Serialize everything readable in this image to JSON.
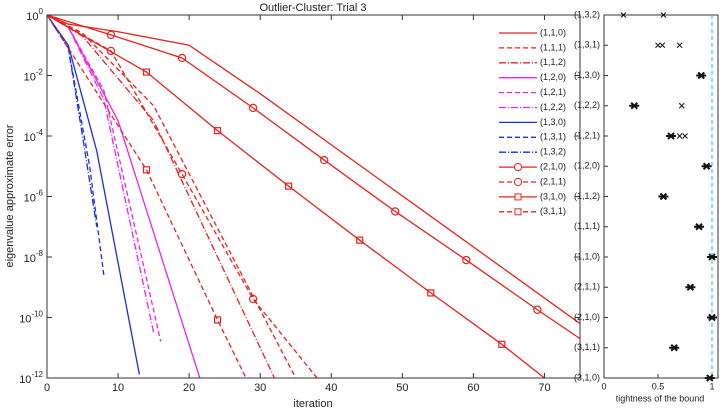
{
  "chart_data": [
    {
      "type": "line",
      "title": "Outlier-Cluster: Trial 3",
      "xlabel": "iteration",
      "ylabel": "eigenvalue approximate error",
      "log_y": true,
      "xlim": [
        0,
        75
      ],
      "ylim": [
        1e-12,
        1
      ],
      "xticks": [
        0,
        10,
        20,
        30,
        40,
        50,
        60,
        70
      ],
      "yticks": [
        {
          "value": 1e-12,
          "label": "10^-12"
        },
        {
          "value": 1e-10,
          "label": "10^-10"
        },
        {
          "value": 1e-08,
          "label": "10^-8"
        },
        {
          "value": 1e-06,
          "label": "10^-6"
        },
        {
          "value": 0.0001,
          "label": "10^-4"
        },
        {
          "value": 0.01,
          "label": "10^-2"
        },
        {
          "value": 1,
          "label": "10^0"
        }
      ],
      "legend": "upper right",
      "series": [
        {
          "name": "(1,1,0)",
          "color": "#e8231f",
          "style": "solid",
          "x": [
            0,
            3,
            10,
            20,
            30,
            75
          ],
          "values": [
            1,
            0.5,
            0.28,
            0.1,
            0.0025,
            6.3e-11
          ]
        },
        {
          "name": "(1,1,1)",
          "color": "#e8231f",
          "style": "dashed",
          "x": [
            0,
            5,
            15,
            35
          ],
          "values": [
            1,
            0.25,
            0.001,
            1e-12
          ]
        },
        {
          "name": "(1,1,2)",
          "color": "#e8231f",
          "style": "dashdot",
          "x": [
            0,
            5,
            15,
            32
          ],
          "values": [
            1,
            0.2,
            0.00032,
            1e-12
          ]
        },
        {
          "name": "(1,2,0)",
          "color": "#ee22ee",
          "style": "solid",
          "x": [
            0,
            3,
            10,
            21.5
          ],
          "values": [
            1,
            0.4,
            0.00032,
            1e-12
          ]
        },
        {
          "name": "(1,2,1)",
          "color": "#ee22ee",
          "style": "dashed",
          "x": [
            0,
            3,
            8,
            16
          ],
          "values": [
            1,
            0.4,
            0.0032,
            1.6e-11
          ]
        },
        {
          "name": "(1,2,2)",
          "color": "#ee22ee",
          "style": "dashdot",
          "x": [
            0,
            3,
            8,
            15
          ],
          "values": [
            1,
            0.4,
            0.0016,
            3.2e-11
          ]
        },
        {
          "name": "(1,3,0)",
          "color": "#1a2ee0",
          "style": "solid",
          "x": [
            0,
            3,
            7,
            13
          ],
          "values": [
            1,
            0.1,
            3.2e-05,
            1.3e-12
          ]
        },
        {
          "name": "(1,3,1)",
          "color": "#1a2ee0",
          "style": "dashed",
          "x": [
            0,
            3,
            6,
            8
          ],
          "values": [
            1,
            0.08,
            1e-05,
            2.5e-09
          ]
        },
        {
          "name": "(1,3,2)",
          "color": "#1a2ee0",
          "style": "dashdot",
          "x": [
            0,
            3,
            5,
            7
          ],
          "values": [
            1,
            0.08,
            0.0001,
            1e-07
          ]
        },
        {
          "name": "(2,1,0)",
          "color": "#e8231f",
          "style": "solid",
          "marker": "circle",
          "x": [
            0,
            9,
            19,
            29,
            39,
            49,
            59,
            69,
            75
          ],
          "values": [
            1,
            0.22,
            0.038,
            0.00085,
            1.6e-05,
            3.2e-07,
            7.9e-09,
            1.8e-10,
            2e-11
          ]
        },
        {
          "name": "(2,1,1)",
          "color": "#e8231f",
          "style": "dashed",
          "marker": "circle",
          "x": [
            0,
            9,
            19,
            29,
            38
          ],
          "values": [
            1,
            0.065,
            5.5e-06,
            4.1e-10,
            1e-12
          ]
        },
        {
          "name": "(3,1,0)",
          "color": "#e8231f",
          "style": "solid",
          "marker": "square",
          "x": [
            0,
            14,
            24,
            34,
            44,
            54,
            64,
            70
          ],
          "values": [
            1,
            0.013,
            0.00015,
            2.2e-06,
            3.6e-08,
            6.5e-10,
            1.3e-11,
            1e-12
          ]
        },
        {
          "name": "(3,1,1)",
          "color": "#e8231f",
          "style": "dashed",
          "marker": "square",
          "x": [
            0,
            14,
            24,
            28
          ],
          "values": [
            1,
            7.6e-06,
            8.3e-11,
            1e-12
          ]
        }
      ]
    },
    {
      "type": "scatter",
      "xlabel": "tightness of the bound",
      "xlim": [
        0,
        1
      ],
      "xticks": [
        0,
        0.5,
        1
      ],
      "reference_x": 1,
      "reference_color": "#33ccdd",
      "categories": [
        "(1,3,2)",
        "(1,3,1)",
        "(1,3,0)",
        "(1,2,2)",
        "(1,2,1)",
        "(1,2,0)",
        "(1,1,2)",
        "(1,1,1)",
        "(1,1,0)",
        "(2,1,1)",
        "(2,1,0)",
        "(3,1,1)",
        "(3,1,0)"
      ],
      "mean": [
        null,
        null,
        0.9,
        0.28,
        0.62,
        0.95,
        0.55,
        0.88,
        1.0,
        0.8,
        1.0,
        0.65,
        0.98
      ],
      "others": [
        [
          0.18,
          0.55
        ],
        [
          0.5,
          0.54,
          0.7
        ],
        [],
        [
          0.72
        ],
        [
          0.7,
          0.75
        ],
        [],
        [],
        [],
        [],
        [],
        [],
        [],
        []
      ]
    }
  ]
}
